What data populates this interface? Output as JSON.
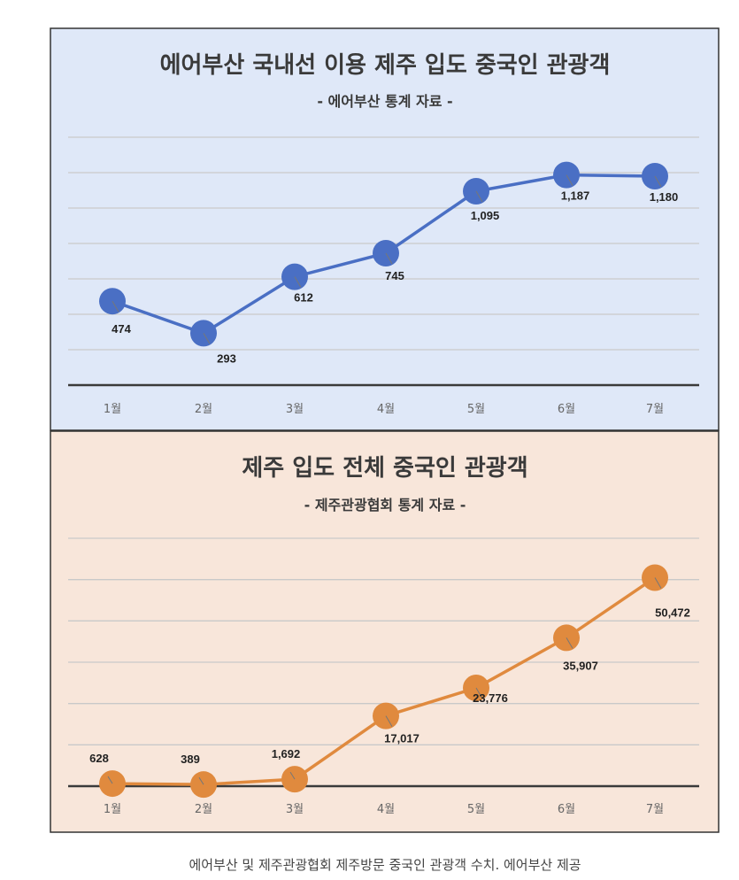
{
  "caption": "에어부산 및 제주관광협회 제주방문 중국인 관광객 수치. 에어부산 제공",
  "chart_data": [
    {
      "type": "line",
      "title": "에어부산 국내선 이용 제주 입도 중국인 관광객",
      "subtitle": "- 에어부산 통계 자료 -",
      "categories": [
        "1월",
        "2월",
        "3월",
        "4월",
        "5월",
        "6월",
        "7월"
      ],
      "values": [
        474,
        293,
        612,
        745,
        1095,
        1187,
        1180
      ],
      "labels": [
        "474",
        "293",
        "612",
        "745",
        "1,095",
        "1,187",
        "1,180"
      ],
      "ylim": [
        0,
        1400
      ],
      "grid_step": 200,
      "grid": true,
      "color": "#4a6fc4",
      "background": "#dfe8f8"
    },
    {
      "type": "line",
      "title": "제주 입도 전체 중국인 관광객",
      "subtitle": "- 제주관광협회 통계 자료 -",
      "categories": [
        "1월",
        "2월",
        "3월",
        "4월",
        "5월",
        "6월",
        "7월"
      ],
      "values": [
        628,
        389,
        1692,
        17017,
        23776,
        35907,
        50472
      ],
      "labels": [
        "628",
        "389",
        "1,692",
        "17,017",
        "23,776",
        "35,907",
        "50,472"
      ],
      "ylim": [
        0,
        60000
      ],
      "grid_step": 10000,
      "grid": true,
      "color": "#e08a3e",
      "background": "#f8e6da"
    }
  ]
}
